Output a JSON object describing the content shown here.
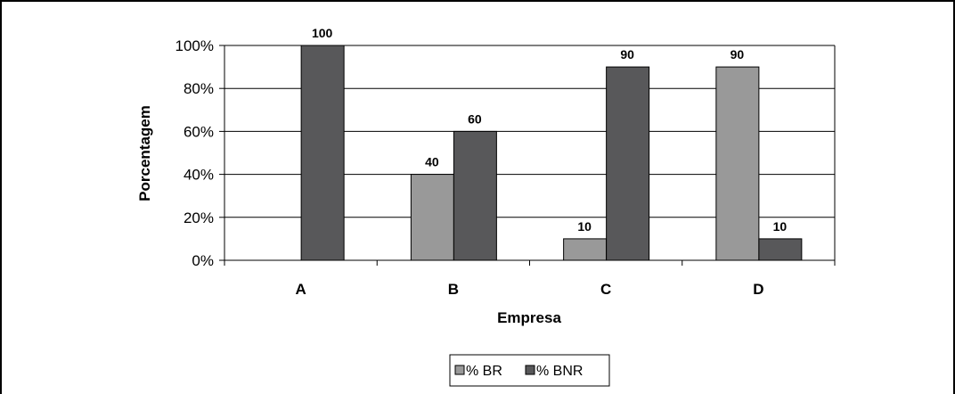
{
  "chart_data": {
    "type": "bar",
    "categories": [
      "A",
      "B",
      "C",
      "D"
    ],
    "series": [
      {
        "name": "% BR",
        "values": [
          0,
          40,
          10,
          90
        ],
        "color": "#999999"
      },
      {
        "name": "% BNR",
        "values": [
          100,
          60,
          90,
          10
        ],
        "color": "#58585a"
      }
    ],
    "data_labels": [
      [
        null,
        "40",
        "10",
        "90"
      ],
      [
        "100",
        "60",
        "90",
        "10"
      ]
    ],
    "xlabel": "Empresa",
    "ylabel": "Porcentagem",
    "ylim": [
      0,
      100
    ],
    "yticks": [
      "0%",
      "20%",
      "40%",
      "60%",
      "80%",
      "100%"
    ],
    "grid": true,
    "legend_position": "bottom"
  }
}
